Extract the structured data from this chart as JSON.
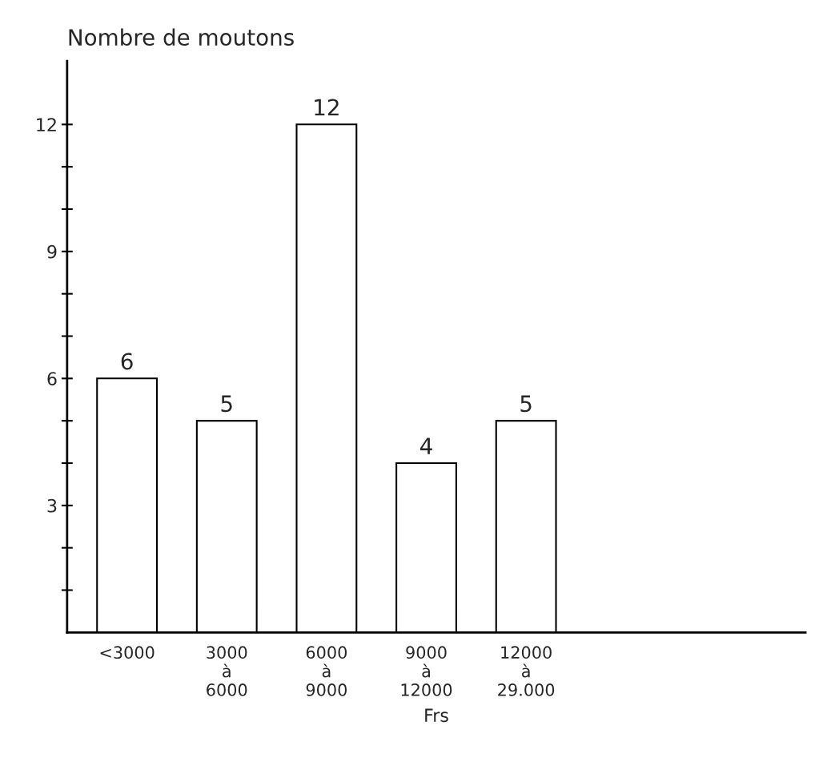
{
  "chart_data": {
    "type": "bar",
    "ylabel": "Nombre de moutons",
    "xlabel": "Frs",
    "categories": [
      "<3000",
      "3000\nà\n6000",
      "6000\nà\n9000",
      "9000\nà\n12000",
      "12000\nà\n29.000"
    ],
    "values": [
      6,
      5,
      12,
      4,
      5
    ],
    "color": "#ffffff",
    "ylim": [
      0,
      13.5
    ],
    "yticks": [
      {
        "value": 1,
        "label": null
      },
      {
        "value": 2,
        "label": null
      },
      3,
      {
        "value": 4,
        "label": null
      },
      {
        "value": 5,
        "label": null
      },
      6,
      {
        "value": 7,
        "label": null
      },
      {
        "value": 8,
        "label": null
      },
      9,
      {
        "value": 10,
        "label": null
      },
      {
        "value": 11,
        "label": null
      },
      12
    ],
    "data_labels": true,
    "grid": false,
    "legend": false
  }
}
